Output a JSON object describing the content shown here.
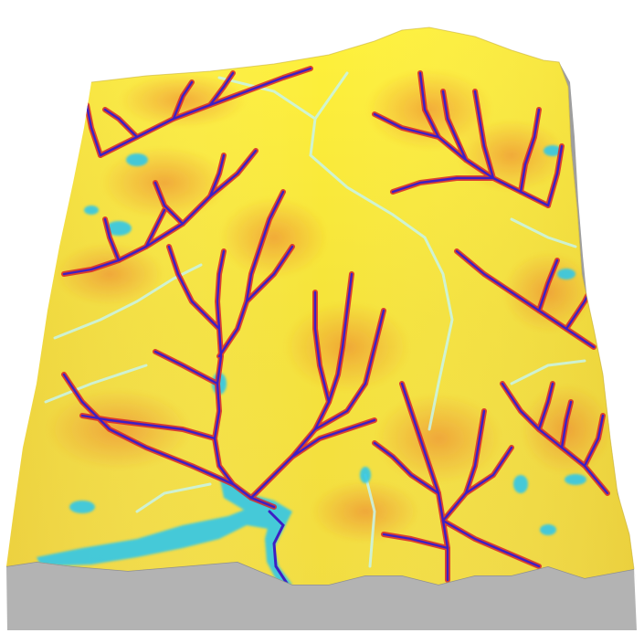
{
  "view": {
    "type": "3d-terrain-render",
    "colormap": [
      "#19b4ea",
      "#8be7ef",
      "#fff84a",
      "#f3c44a",
      "#ee6d38",
      "#cc1c1c",
      "#3b1dbd"
    ],
    "base_color": "#b5b5b5",
    "background_color": "#ffffff"
  }
}
